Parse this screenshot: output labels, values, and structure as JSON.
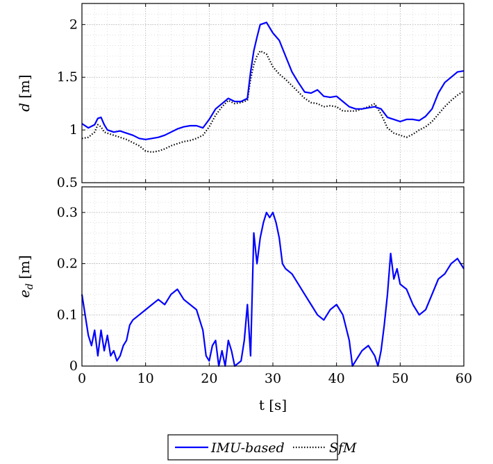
{
  "chart_data": [
    {
      "type": "line",
      "ylabel_symbol": "d",
      "ylabel_unit": "[m]",
      "xlim": [
        0,
        60
      ],
      "ylim": [
        0.5,
        2.2
      ],
      "xticks": [
        "0",
        "10",
        "20",
        "30",
        "40",
        "50",
        "60"
      ],
      "yticks": [
        "0.5",
        "1",
        "1.5",
        "2"
      ],
      "grid": true,
      "series": [
        {
          "name": "IMU-based",
          "color": "#0000ff",
          "style": "solid",
          "x": [
            0,
            1,
            2,
            2.5,
            3,
            3.5,
            4,
            5,
            6,
            7,
            8,
            9,
            10,
            11,
            12,
            13,
            14,
            15,
            16,
            17,
            18,
            19,
            20,
            21,
            22,
            23,
            24,
            25,
            26,
            26.5,
            27,
            27.5,
            28,
            29,
            30,
            31,
            32,
            33,
            34,
            35,
            36,
            37,
            38,
            39,
            40,
            41,
            42,
            43,
            44,
            45,
            46,
            47,
            48,
            49,
            50,
            51,
            52,
            53,
            54,
            55,
            56,
            57,
            58,
            59,
            60
          ],
          "y": [
            1.06,
            1.02,
            1.05,
            1.11,
            1.12,
            1.05,
            1.0,
            0.98,
            0.99,
            0.97,
            0.95,
            0.92,
            0.91,
            0.92,
            0.93,
            0.95,
            0.98,
            1.01,
            1.03,
            1.04,
            1.04,
            1.02,
            1.1,
            1.2,
            1.25,
            1.3,
            1.27,
            1.27,
            1.3,
            1.55,
            1.75,
            1.88,
            2.0,
            2.02,
            1.92,
            1.85,
            1.7,
            1.55,
            1.45,
            1.36,
            1.35,
            1.38,
            1.32,
            1.31,
            1.32,
            1.27,
            1.22,
            1.2,
            1.2,
            1.21,
            1.22,
            1.2,
            1.12,
            1.1,
            1.08,
            1.1,
            1.1,
            1.09,
            1.13,
            1.2,
            1.35,
            1.45,
            1.5,
            1.55,
            1.56
          ]
        },
        {
          "name": "SfM",
          "color": "#000000",
          "style": "dotted",
          "x": [
            0,
            1,
            2,
            2.5,
            3,
            3.5,
            4,
            5,
            6,
            7,
            8,
            9,
            10,
            11,
            12,
            13,
            14,
            15,
            16,
            17,
            18,
            19,
            20,
            21,
            22,
            23,
            24,
            25,
            26,
            26.5,
            27,
            27.5,
            28,
            29,
            30,
            31,
            32,
            33,
            34,
            35,
            36,
            37,
            38,
            39,
            40,
            41,
            42,
            43,
            44,
            45,
            46,
            47,
            48,
            49,
            50,
            51,
            52,
            53,
            54,
            55,
            56,
            57,
            58,
            59,
            60
          ],
          "y": [
            0.92,
            0.93,
            0.98,
            1.05,
            1.03,
            0.98,
            0.97,
            0.95,
            0.93,
            0.91,
            0.88,
            0.85,
            0.8,
            0.79,
            0.8,
            0.82,
            0.85,
            0.87,
            0.89,
            0.9,
            0.92,
            0.95,
            1.03,
            1.14,
            1.22,
            1.28,
            1.25,
            1.26,
            1.28,
            1.48,
            1.62,
            1.7,
            1.75,
            1.72,
            1.6,
            1.53,
            1.48,
            1.42,
            1.36,
            1.3,
            1.26,
            1.25,
            1.22,
            1.23,
            1.22,
            1.18,
            1.18,
            1.18,
            1.2,
            1.22,
            1.25,
            1.15,
            1.02,
            0.97,
            0.95,
            0.93,
            0.96,
            1.0,
            1.03,
            1.08,
            1.15,
            1.22,
            1.28,
            1.33,
            1.37
          ]
        }
      ]
    },
    {
      "type": "line",
      "ylabel_symbol": "e",
      "ylabel_subscript": "d",
      "ylabel_unit": "[m]",
      "xlabel": "t [s]",
      "xlim": [
        0,
        60
      ],
      "ylim": [
        0,
        0.35
      ],
      "xticks": [
        "0",
        "10",
        "20",
        "30",
        "40",
        "50",
        "60"
      ],
      "yticks": [
        "0",
        "0.1",
        "0.2",
        "0.3"
      ],
      "grid": true,
      "series": [
        {
          "name": "IMU-based",
          "color": "#0000ff",
          "style": "solid",
          "x": [
            0,
            0.5,
            1,
            1.5,
            2,
            2.5,
            3,
            3.5,
            4,
            4.5,
            5,
            5.5,
            6,
            6.5,
            7,
            7.5,
            8,
            9,
            10,
            11,
            12,
            13,
            14,
            15,
            16,
            17,
            18,
            19,
            19.5,
            20,
            20.5,
            21,
            21.5,
            22,
            22.5,
            23,
            23.5,
            24,
            25,
            25.5,
            26,
            26.5,
            27,
            27.5,
            28,
            28.5,
            29,
            29.5,
            30,
            30.5,
            31,
            31.5,
            32,
            33,
            34,
            35,
            36,
            37,
            38,
            39,
            40,
            41,
            42,
            42.5,
            43,
            44,
            45,
            46,
            46.5,
            47,
            47.5,
            48,
            48.5,
            49,
            49.5,
            50,
            51,
            52,
            53,
            54,
            55,
            56,
            57,
            58,
            59,
            60
          ],
          "y": [
            0.14,
            0.1,
            0.06,
            0.04,
            0.07,
            0.02,
            0.07,
            0.03,
            0.06,
            0.02,
            0.03,
            0.01,
            0.02,
            0.04,
            0.05,
            0.08,
            0.09,
            0.1,
            0.11,
            0.12,
            0.13,
            0.12,
            0.14,
            0.15,
            0.13,
            0.12,
            0.11,
            0.07,
            0.02,
            0.01,
            0.04,
            0.05,
            0.0,
            0.03,
            0.0,
            0.05,
            0.03,
            0.0,
            0.01,
            0.05,
            0.12,
            0.02,
            0.26,
            0.2,
            0.25,
            0.28,
            0.3,
            0.29,
            0.3,
            0.28,
            0.25,
            0.2,
            0.19,
            0.18,
            0.16,
            0.14,
            0.12,
            0.1,
            0.09,
            0.11,
            0.12,
            0.1,
            0.05,
            0.0,
            0.01,
            0.03,
            0.04,
            0.02,
            0.0,
            0.03,
            0.08,
            0.14,
            0.22,
            0.17,
            0.19,
            0.16,
            0.15,
            0.12,
            0.1,
            0.11,
            0.14,
            0.17,
            0.18,
            0.2,
            0.21,
            0.19
          ]
        }
      ]
    }
  ],
  "legend": {
    "items": [
      {
        "label": "IMU-based",
        "color": "#0000ff",
        "style": "solid"
      },
      {
        "label": "SfM",
        "color": "#000000",
        "style": "dotted"
      }
    ]
  }
}
